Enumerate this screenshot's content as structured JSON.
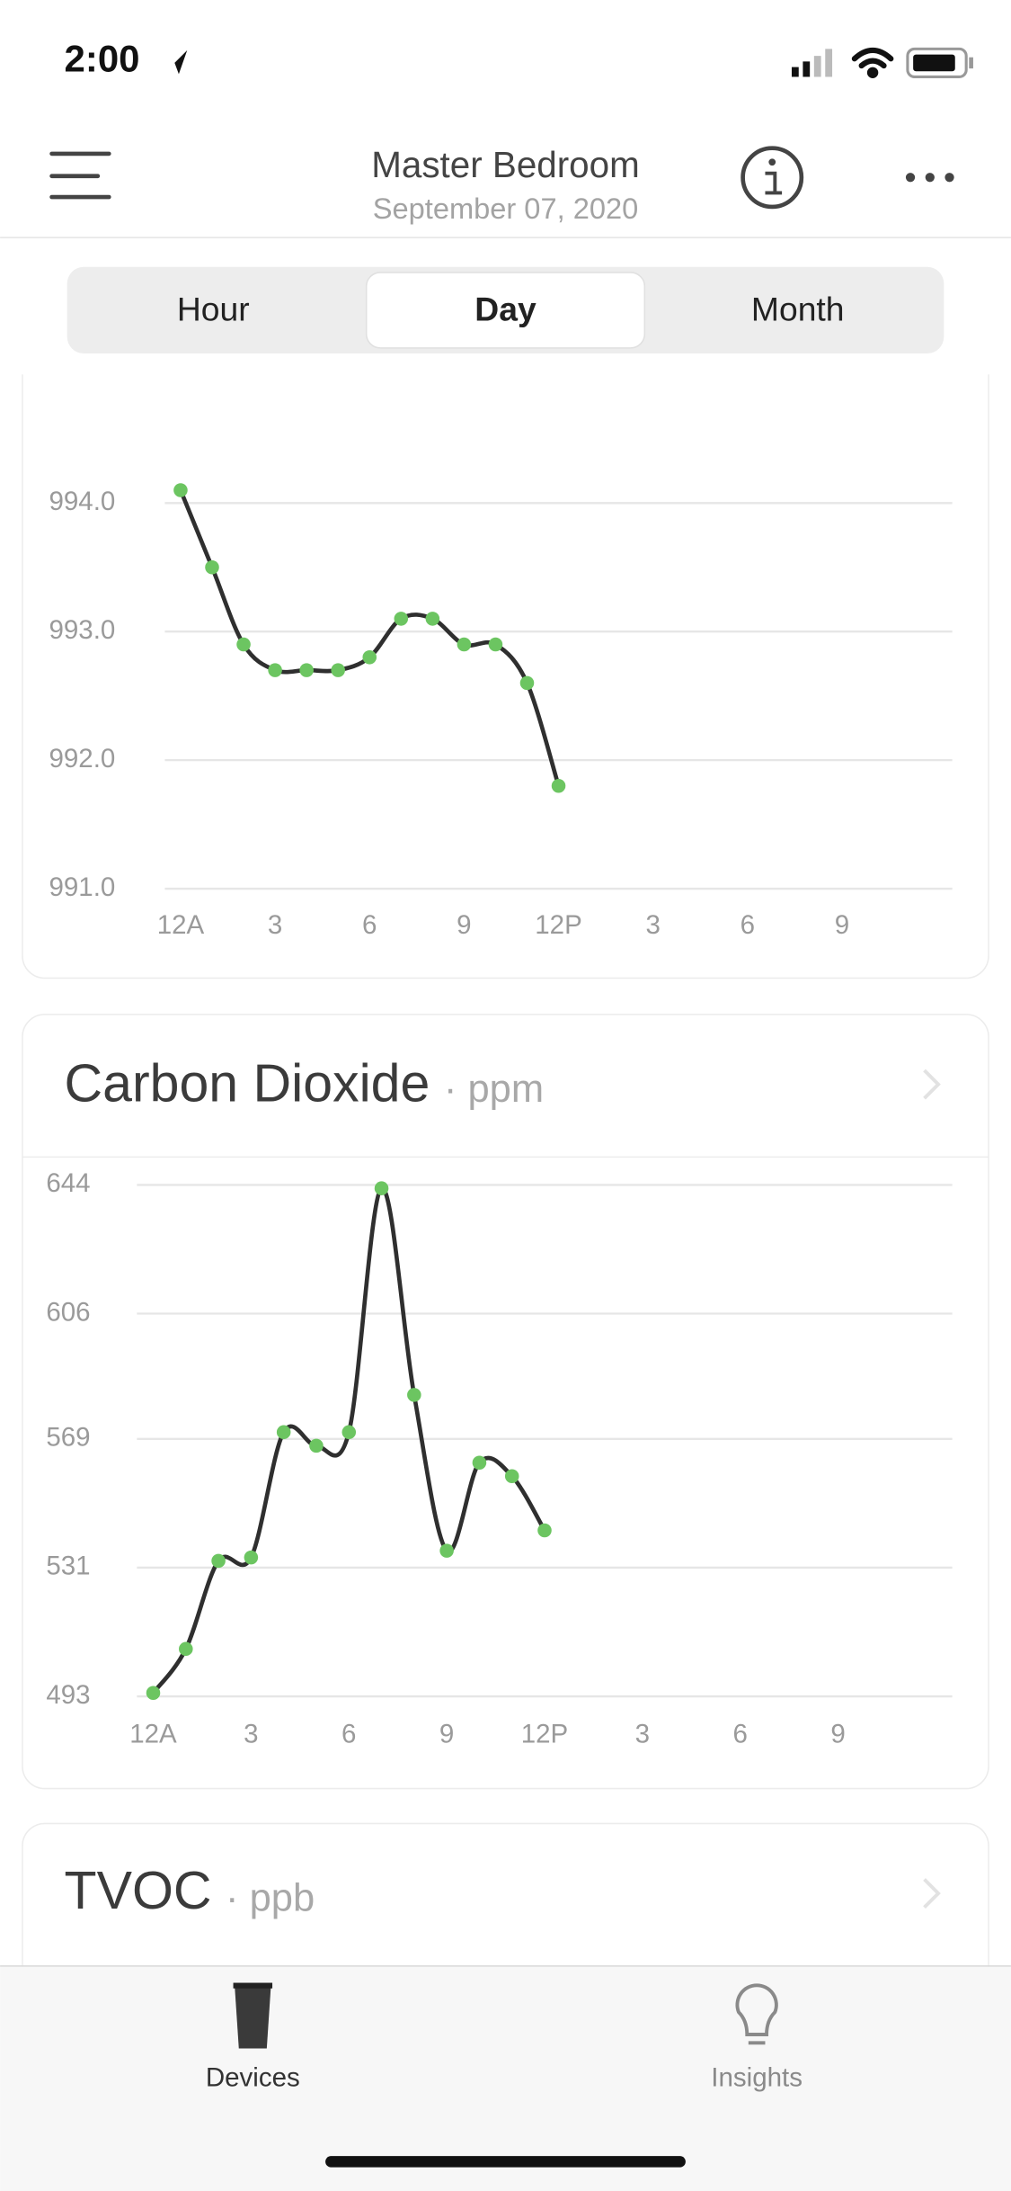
{
  "status_bar": {
    "time": "2:00"
  },
  "header": {
    "title": "Master Bedroom",
    "date": "September 07, 2020"
  },
  "tabs": {
    "items": [
      "Hour",
      "Day",
      "Month"
    ],
    "selected": 1
  },
  "chart_data": [
    {
      "type": "line",
      "x": [
        0,
        1,
        2,
        3,
        4,
        5,
        6,
        7,
        8,
        9,
        10,
        11,
        12
      ],
      "series": [
        {
          "color": "#2f2f2f",
          "marker_color": "#6cc561",
          "values": [
            994.1,
            993.5,
            992.9,
            992.7,
            992.7,
            992.7,
            992.8,
            993.1,
            993.1,
            992.9,
            992.9,
            992.6,
            991.8
          ]
        }
      ],
      "xlim": [
        -0.5,
        24.5
      ],
      "ylim": [
        991,
        995
      ],
      "xticks": [
        {
          "value": 0,
          "label": "12A"
        },
        3,
        6,
        9,
        {
          "value": 12,
          "label": "12P"
        },
        {
          "value": 15,
          "label": "3"
        },
        {
          "value": 18,
          "label": "6"
        },
        {
          "value": 21,
          "label": "9"
        }
      ],
      "yticks": [
        {
          "value": 991,
          "label": "991.0"
        },
        {
          "value": 992,
          "label": "992.0"
        },
        {
          "value": 993,
          "label": "993.0"
        },
        {
          "value": 994,
          "label": "994.0"
        }
      ],
      "grid": true
    },
    {
      "type": "line",
      "title": "Carbon Dioxide",
      "subtitle": "· ppm",
      "x": [
        0,
        1,
        2,
        3,
        4,
        5,
        6,
        7,
        8,
        9,
        10,
        11,
        12
      ],
      "series": [
        {
          "color": "#2f2f2f",
          "marker_color": "#6cc561",
          "values": [
            494,
            507,
            533,
            534,
            571,
            567,
            571,
            643,
            582,
            536,
            562,
            558,
            542
          ]
        }
      ],
      "xlim": [
        -0.5,
        24.5
      ],
      "ylim": [
        493,
        644
      ],
      "xticks": [
        {
          "value": 0,
          "label": "12A"
        },
        3,
        6,
        9,
        {
          "value": 12,
          "label": "12P"
        },
        {
          "value": 15,
          "label": "3"
        },
        {
          "value": 18,
          "label": "6"
        },
        {
          "value": 21,
          "label": "9"
        }
      ],
      "yticks": [
        493,
        531,
        569,
        606,
        644
      ],
      "grid": true
    }
  ],
  "next_card": {
    "title": "TVOC",
    "subtitle": "· ppb"
  },
  "tab_bar": {
    "items": [
      "Devices",
      "Insights"
    ],
    "selected": 0
  }
}
